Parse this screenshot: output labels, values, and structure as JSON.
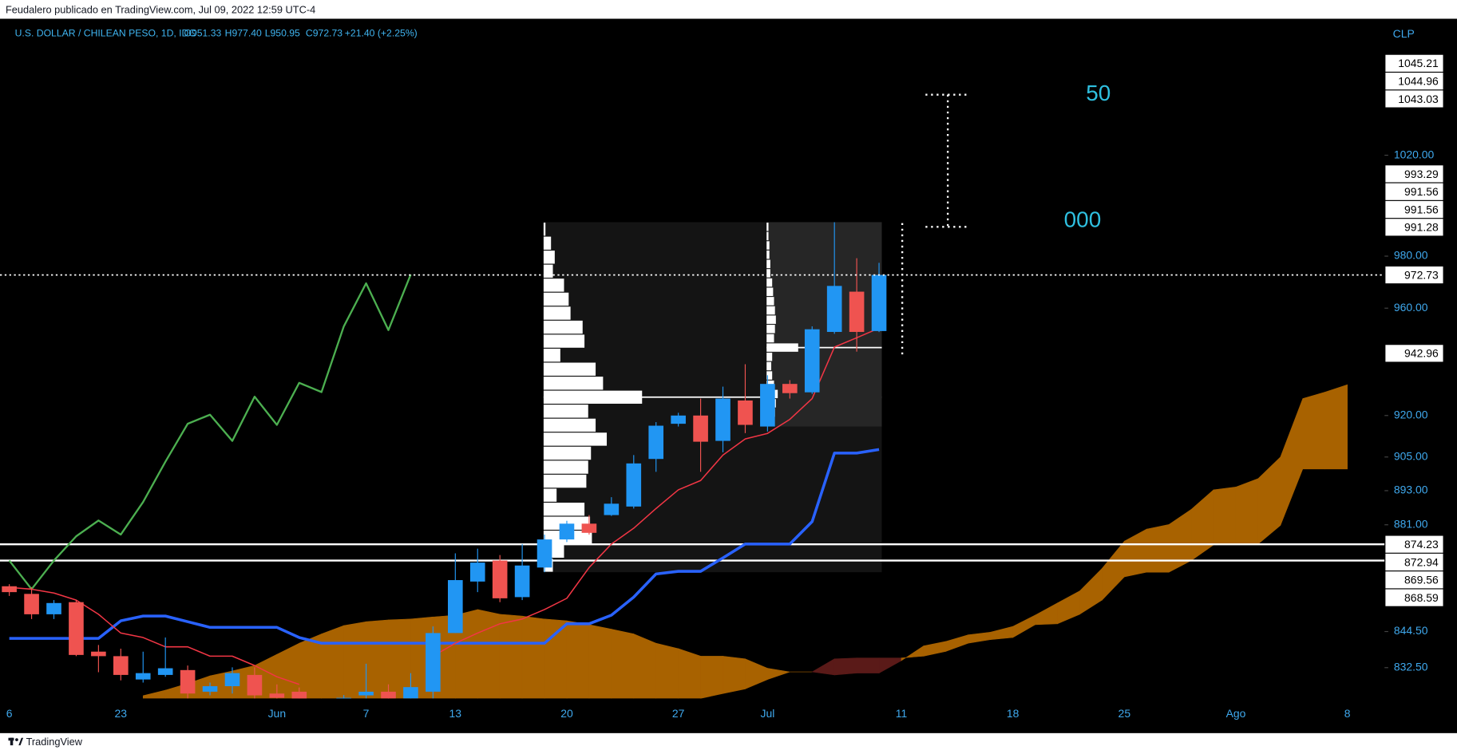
{
  "chart_data": {
    "type": "candlestick",
    "header": "Feudalero publicado en TradingView.com, Jul 09, 2022 12:59 UTC-4",
    "symbol": "U.S. DOLLAR / CHILEAN PESO, 1D, IDC",
    "legend": [
      "O951.33",
      "H977.40",
      "L950.95",
      "C972.73",
      "+21.40 (+2.25%)"
    ],
    "unit_label": "CLP",
    "annotations": [
      "50",
      "000"
    ],
    "brand": "TradingView",
    "log_scale": true,
    "ylim": [
      822.4,
      1076.7
    ],
    "yticks": [
      {
        "value": 1020,
        "label": "1020.00"
      },
      {
        "value": 980,
        "label": "980.00"
      },
      {
        "value": 960,
        "label": "960.00"
      },
      {
        "value": 920,
        "label": "920.00"
      },
      {
        "value": 905,
        "label": "905.00"
      },
      {
        "value": 893,
        "label": "893.00"
      },
      {
        "value": 881,
        "label": "881.00"
      },
      {
        "value": 844.5,
        "label": "844.50"
      },
      {
        "value": 832.5,
        "label": "832.50"
      }
    ],
    "categories": [
      "6",
      null,
      null,
      null,
      null,
      "23",
      null,
      null,
      null,
      null,
      null,
      null,
      "Jun",
      null,
      null,
      null,
      "7",
      null,
      null,
      null,
      "13",
      null,
      null,
      null,
      null,
      "20",
      null,
      null,
      null,
      null,
      "27",
      null,
      null,
      null,
      "Jul",
      null,
      null,
      null,
      null,
      null,
      "11",
      null,
      null,
      null,
      null,
      "18",
      null,
      null,
      null,
      null,
      "25",
      null,
      null,
      null,
      null,
      "Ago",
      null,
      null,
      null,
      null,
      "8"
    ],
    "up_color": "#2196f3",
    "down_color": "#ef5350",
    "open": [
      859.8,
      857.2,
      850.3,
      854.4,
      837.8,
      836.3,
      828.6,
      830.1,
      831.7,
      824.6,
      826.4,
      830.1,
      824.0,
      824.6,
      null,
      821.8,
      823.4,
      824.6,
      822.4,
      824.6,
      844.0,
      861.4,
      868.6,
      856.1,
      866.2,
      875.9,
      881.4,
      884.4,
      887.4,
      904.3,
      917.0,
      920.0,
      910.8,
      925.5,
      916.0,
      931.6,
      928.5,
      951.0,
      966.3,
      951.33,
      null,
      null,
      null,
      null,
      null,
      null,
      null,
      null,
      null,
      null,
      null,
      null,
      null,
      null,
      null,
      null,
      null,
      null,
      null,
      null,
      null
    ],
    "high": [
      860.5,
      859.5,
      855.1,
      855.1,
      840.0,
      838.8,
      837.8,
      842.5,
      833.2,
      827.6,
      832.6,
      832.6,
      827.0,
      826.0,
      null,
      823.5,
      833.8,
      827.0,
      830.7,
      846.2,
      871.1,
      872.7,
      870.5,
      874.3,
      877.6,
      882.4,
      884.4,
      890.7,
      905.7,
      917.6,
      921.0,
      926.2,
      930.6,
      938.9,
      934.8,
      933.0,
      953.1,
      993.29,
      979.2,
      977.4,
      null,
      null,
      null,
      null,
      null,
      null,
      null,
      null,
      null,
      null,
      null,
      null,
      null,
      null,
      null,
      null,
      null,
      null,
      null,
      null,
      null
    ],
    "low": [
      856.5,
      848.7,
      848.7,
      836.3,
      831.0,
      828.3,
      827.6,
      829.5,
      822.4,
      823.4,
      824.0,
      822.4,
      821.5,
      821.0,
      null,
      820.5,
      822.4,
      821.5,
      821.8,
      822.4,
      844.0,
      857.8,
      854.4,
      855.1,
      864.6,
      875.0,
      877.6,
      884.1,
      886.7,
      899.7,
      916.0,
      899.7,
      906.7,
      913.6,
      914.2,
      926.2,
      927.9,
      950.3,
      943.6,
      950.95,
      null,
      null,
      null,
      null,
      null,
      null,
      null,
      null,
      null,
      null,
      null,
      null,
      null,
      null,
      null,
      null,
      null,
      null,
      null,
      null,
      null
    ],
    "close": [
      857.8,
      850.3,
      854.1,
      836.7,
      836.3,
      830.1,
      830.7,
      832.3,
      824.0,
      826.4,
      830.7,
      823.4,
      822.6,
      822.0,
      null,
      822.6,
      824.6,
      822.4,
      826.1,
      844.0,
      861.9,
      867.9,
      855.7,
      866.9,
      875.9,
      881.4,
      878.2,
      888.4,
      902.7,
      916.3,
      920.0,
      910.5,
      926.2,
      916.6,
      931.6,
      928.2,
      952.0,
      968.5,
      951.0,
      972.73,
      null,
      null,
      null,
      null,
      null,
      null,
      null,
      null,
      null,
      null,
      null,
      null,
      null,
      null,
      null,
      null,
      null,
      null,
      null,
      null,
      null
    ],
    "lines": [
      {
        "color": "#4caf50",
        "width": 2,
        "values": [
          868.6,
          858.8,
          868.6,
          877.0,
          882.5,
          877.6,
          889.0,
          903.3,
          917.0,
          920.3,
          910.8,
          926.9,
          916.6,
          932.0,
          928.6,
          953.1,
          969.5,
          951.7,
          972.9,
          null,
          null,
          null,
          null,
          null,
          null,
          null,
          null,
          null,
          null,
          null,
          null,
          null,
          null,
          null,
          null,
          null,
          null,
          null,
          null,
          null,
          null,
          null,
          null,
          null,
          null,
          null,
          null,
          null,
          null,
          null,
          null,
          null,
          null,
          null,
          null,
          null,
          null,
          null,
          null,
          null,
          null
        ]
      },
      {
        "color": "#2962ff",
        "width": 3,
        "values": [
          842.2,
          842.2,
          842.2,
          842.2,
          842.2,
          848.1,
          849.7,
          849.7,
          847.8,
          845.9,
          845.9,
          845.9,
          845.9,
          842.5,
          840.6,
          840.6,
          840.6,
          840.6,
          840.6,
          840.6,
          840.6,
          840.6,
          840.6,
          840.6,
          840.6,
          847.1,
          847.1,
          850.0,
          856.1,
          864.0,
          864.9,
          864.9,
          869.5,
          874.3,
          874.3,
          874.3,
          882.1,
          906.4,
          906.4,
          907.7,
          null,
          null,
          null,
          null,
          null,
          null,
          null,
          null,
          null,
          null,
          null,
          null,
          null,
          null,
          null,
          null,
          null,
          null,
          null,
          null,
          null
        ]
      },
      {
        "color": "#f23645",
        "width": 1.3,
        "values": [
          859.4,
          858.8,
          857.5,
          855.1,
          850.3,
          844.0,
          842.5,
          839.4,
          839.4,
          836.3,
          836.3,
          833.2,
          829.5,
          827.0,
          null,
          null,
          null,
          null,
          null,
          836.3,
          840.6,
          844.0,
          847.1,
          848.7,
          851.9,
          855.7,
          866.2,
          874.3,
          879.8,
          886.7,
          893.3,
          896.6,
          905.7,
          911.5,
          913.5,
          918.6,
          926.2,
          945.3,
          948.8,
          952.4,
          null,
          null,
          null,
          null,
          null,
          null,
          null,
          null,
          null,
          null,
          null,
          null,
          null,
          null,
          null,
          null,
          null,
          null,
          null,
          null,
          null
        ]
      }
    ],
    "cloud_colors": {
      "up": "#a86200",
      "down": "#5a1a18"
    },
    "span_a": [
      null,
      null,
      null,
      null,
      null,
      null,
      823.3,
      825.1,
      827.3,
      829.8,
      831.4,
      833.2,
      836.9,
      840.6,
      843.7,
      846.5,
      847.8,
      848.4,
      848.7,
      849.4,
      850.0,
      851.9,
      850.3,
      849.7,
      848.7,
      848.1,
      846.8,
      845.3,
      843.7,
      840.6,
      838.8,
      836.3,
      836.3,
      835.4,
      832.3,
      831.1,
      831.1,
      830.1,
      830.7,
      830.7,
      834.8,
      839.7,
      841.2,
      843.4,
      844.3,
      846.2,
      850.0,
      854.1,
      858.2,
      865.9,
      875.3,
      879.5,
      881.1,
      886.4,
      893.3,
      894.3,
      897.3,
      905.0,
      926.2,
      928.6,
      931.3
    ],
    "span_b": [
      null,
      null,
      null,
      null,
      null,
      null,
      null,
      null,
      null,
      null,
      null,
      null,
      null,
      null,
      null,
      null,
      null,
      null,
      null,
      null,
      null,
      null,
      null,
      null,
      null,
      null,
      null,
      null,
      null,
      null,
      null,
      822.4,
      824.0,
      825.5,
      828.6,
      831.1,
      831.1,
      835.4,
      835.7,
      835.7,
      835.7,
      836.3,
      837.9,
      840.6,
      841.8,
      842.5,
      846.8,
      847.1,
      850.3,
      855.1,
      863.0,
      864.6,
      864.6,
      868.6,
      874.0,
      874.3,
      874.3,
      880.8,
      900.7,
      900.7,
      900.7
    ],
    "profiles": [
      {
        "range": [
          864.6,
          993.29
        ],
        "volumes": [
          2,
          8,
          12,
          10,
          22,
          27,
          29,
          42,
          44,
          18,
          56,
          64,
          106,
          48,
          56,
          68,
          51,
          48,
          46,
          14,
          44,
          50,
          52,
          22,
          10
        ]
      },
      {
        "range": [
          916.0,
          993.29
        ],
        "volumes": [
          2,
          2,
          3,
          3,
          4,
          4,
          6,
          7,
          8,
          9,
          10,
          9,
          8,
          34,
          6,
          5,
          6,
          8,
          12,
          10,
          9,
          6
        ]
      }
    ],
    "levels": [
      874.23,
      868.59
    ],
    "price_labels": [
      1045.21,
      1044.96,
      1043.03,
      993.29,
      991.56,
      991.56,
      991.28,
      972.73,
      942.96,
      874.23,
      872.94,
      869.56,
      868.59
    ]
  }
}
